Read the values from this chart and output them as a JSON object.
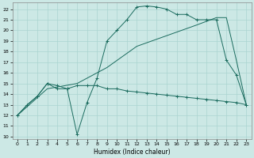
{
  "xlabel": "Humidex (Indice chaleur)",
  "xlim": [
    -0.5,
    23.5
  ],
  "ylim": [
    9.8,
    22.6
  ],
  "yticks": [
    10,
    11,
    12,
    13,
    14,
    15,
    16,
    17,
    18,
    19,
    20,
    21,
    22
  ],
  "xticks": [
    0,
    1,
    2,
    3,
    4,
    5,
    6,
    7,
    8,
    9,
    10,
    11,
    12,
    13,
    14,
    15,
    16,
    17,
    18,
    19,
    20,
    21,
    22,
    23
  ],
  "bg_color": "#cce8e5",
  "grid_color": "#aad4d0",
  "line_color": "#1a6b5e",
  "series": [
    {
      "x": [
        0,
        1,
        2,
        3,
        4,
        5,
        6,
        7,
        8,
        9,
        10,
        11,
        12,
        13,
        14,
        15,
        16,
        17,
        18,
        19,
        20,
        21,
        22,
        23
      ],
      "y": [
        12.0,
        13.0,
        13.8,
        15.0,
        14.8,
        14.5,
        10.2,
        13.2,
        15.5,
        19.0,
        20.0,
        21.0,
        22.2,
        22.3,
        22.2,
        22.0,
        21.5,
        21.5,
        21.0,
        21.0,
        21.0,
        17.2,
        15.8,
        13.0
      ],
      "marker": true
    },
    {
      "x": [
        0,
        3,
        6,
        9,
        12,
        15,
        18,
        20,
        21,
        22,
        23
      ],
      "y": [
        12.0,
        14.5,
        15.0,
        16.5,
        18.5,
        19.5,
        20.5,
        21.2,
        21.2,
        17.2,
        13.0
      ],
      "marker": false
    },
    {
      "x": [
        0,
        1,
        2,
        3,
        4,
        5,
        6,
        7,
        8,
        9,
        10,
        11,
        12,
        13,
        14,
        15,
        16,
        17,
        18,
        19,
        20,
        21,
        22,
        23
      ],
      "y": [
        12.0,
        13.0,
        13.8,
        15.0,
        14.5,
        14.5,
        14.8,
        14.8,
        14.8,
        14.5,
        14.5,
        14.3,
        14.2,
        14.1,
        14.0,
        13.9,
        13.8,
        13.7,
        13.6,
        13.5,
        13.4,
        13.3,
        13.2,
        13.0
      ],
      "marker": true
    }
  ]
}
